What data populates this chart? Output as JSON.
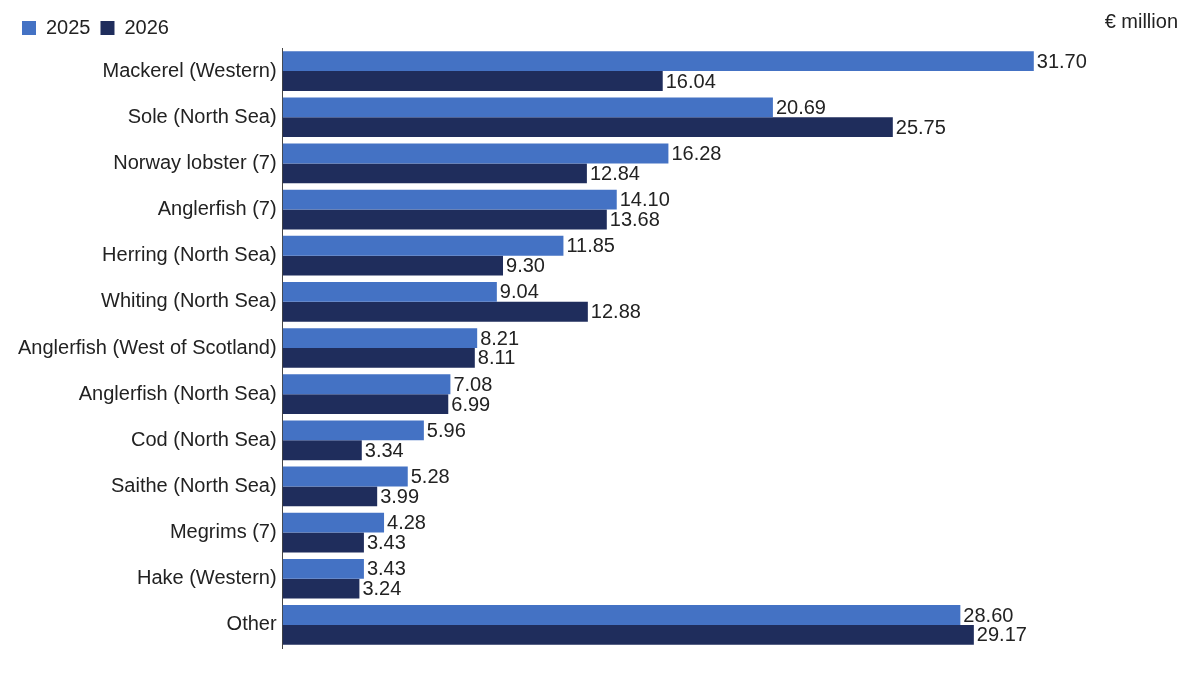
{
  "chart_data": {
    "type": "bar",
    "orientation": "horizontal",
    "categories": [
      "Mackerel (Western)",
      "Sole (North Sea)",
      "Norway lobster (7)",
      "Anglerfish (7)",
      "Herring (North Sea)",
      "Whiting (North Sea)",
      "Anglerfish (West of Scotland)",
      "Anglerfish (North Sea)",
      "Cod (North Sea)",
      "Saithe (North Sea)",
      "Megrims (7)",
      "Hake (Western)",
      "Other"
    ],
    "series": [
      {
        "name": "2025",
        "color": "#4472c4",
        "values": [
          31.7,
          20.69,
          16.28,
          14.1,
          11.85,
          9.04,
          8.21,
          7.08,
          5.96,
          5.28,
          4.28,
          3.43,
          28.6
        ],
        "value_labels": [
          "31.70",
          "20.69",
          "16.28",
          "14.10",
          "11.85",
          "9.04",
          "8.21",
          "7.08",
          "5.96",
          "5.28",
          "4.28",
          "3.43",
          "28.60"
        ]
      },
      {
        "name": "2026",
        "color": "#1f2d5c",
        "values": [
          16.04,
          25.75,
          12.84,
          13.68,
          9.3,
          12.88,
          8.11,
          6.99,
          3.34,
          3.99,
          3.43,
          3.24,
          29.17
        ],
        "value_labels": [
          "16.04",
          "25.75",
          "12.84",
          "13.68",
          "9.30",
          "12.88",
          "8.11",
          "6.99",
          "3.34",
          "3.99",
          "3.43",
          "3.24",
          "29.17"
        ]
      }
    ],
    "annotations": [
      "€ million"
    ],
    "legend": "top left",
    "grid": false,
    "tick_labels": "y"
  }
}
